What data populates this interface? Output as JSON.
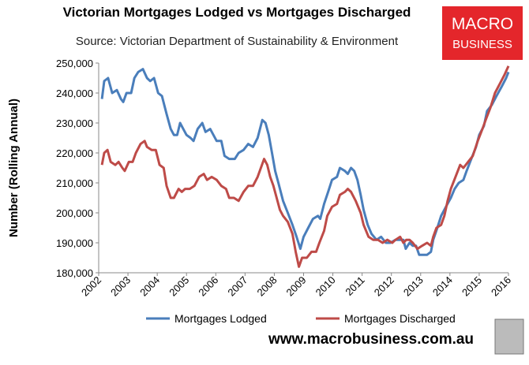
{
  "chart_data": {
    "type": "line",
    "title": "Victorian Mortgages Lodged vs Mortgages Discharged",
    "subtitle": "Source: Victorian Department of Sustainability & Environment",
    "y_label": "Number (Rolling Annual)",
    "logo": [
      "MACRO",
      "BUSINESS"
    ],
    "website": "www.macrobusiness.com.au",
    "xlim": [
      2002,
      2016
    ],
    "xticks": [
      2002,
      2003,
      2004,
      2005,
      2006,
      2007,
      2008,
      2009,
      2010,
      2011,
      2012,
      2013,
      2014,
      2015,
      2016
    ],
    "ylim": [
      180000,
      250000
    ],
    "yticks": [
      {
        "value": 180000,
        "label": "180,000"
      },
      {
        "value": 190000,
        "label": "190,000"
      },
      {
        "value": 200000,
        "label": "200,000"
      },
      {
        "value": 210000,
        "label": "210,000"
      },
      {
        "value": 220000,
        "label": "220,000"
      },
      {
        "value": 230000,
        "label": "230,000"
      },
      {
        "value": 240000,
        "label": "240,000"
      },
      {
        "value": 250000,
        "label": "250,000"
      }
    ],
    "grid": false,
    "legend": "bottom",
    "series": [
      {
        "name": "Mortgages Lodged",
        "color": "#4a7ebb",
        "x": [
          2002.11,
          2002.19,
          2002.32,
          2002.46,
          2002.62,
          2002.76,
          2002.84,
          2002.95,
          2003.11,
          2003.22,
          2003.35,
          2003.51,
          2003.65,
          2003.76,
          2003.89,
          2004.03,
          2004.16,
          2004.32,
          2004.46,
          2004.57,
          2004.68,
          2004.78,
          2004.89,
          2005.0,
          2005.14,
          2005.24,
          2005.38,
          2005.54,
          2005.65,
          2005.81,
          2005.92,
          2006.03,
          2006.19,
          2006.3,
          2006.46,
          2006.65,
          2006.78,
          2006.95,
          2007.11,
          2007.27,
          2007.43,
          2007.59,
          2007.7,
          2007.81,
          2007.92,
          2008.03,
          2008.14,
          2008.3,
          2008.46,
          2008.62,
          2008.76,
          2008.89,
          2009.0,
          2009.16,
          2009.32,
          2009.49,
          2009.57,
          2009.7,
          2009.84,
          2009.97,
          2010.14,
          2010.24,
          2010.41,
          2010.51,
          2010.62,
          2010.73,
          2010.84,
          2010.95,
          2011.05,
          2011.19,
          2011.32,
          2011.49,
          2011.65,
          2011.81,
          2011.97,
          2012.14,
          2012.27,
          2012.41,
          2012.49,
          2012.62,
          2012.73,
          2012.84,
          2012.95,
          2013.05,
          2013.22,
          2013.35,
          2013.43,
          2013.57,
          2013.7,
          2013.86,
          2014.03,
          2014.16,
          2014.3,
          2014.46,
          2014.57,
          2014.73,
          2014.89,
          2015.0,
          2015.16,
          2015.27,
          2015.43,
          2015.59,
          2015.76,
          2015.92,
          2016.0
        ],
        "values": [
          238000,
          244000,
          245000,
          240000,
          241000,
          238000,
          237000,
          240000,
          240000,
          245000,
          247000,
          248000,
          245000,
          244000,
          245000,
          240000,
          239000,
          233000,
          228000,
          226000,
          226000,
          230000,
          228000,
          226000,
          225000,
          224000,
          228000,
          230000,
          227000,
          228000,
          226000,
          224000,
          224000,
          219000,
          218000,
          218000,
          220000,
          221000,
          223000,
          222000,
          225000,
          231000,
          230000,
          226000,
          220000,
          214000,
          210000,
          204000,
          200000,
          196000,
          192000,
          188000,
          192000,
          195000,
          198000,
          199000,
          198000,
          203000,
          207000,
          211000,
          212000,
          215000,
          214000,
          213000,
          215000,
          214000,
          211000,
          206000,
          201000,
          196000,
          193000,
          191000,
          192000,
          190000,
          190000,
          191000,
          191000,
          191000,
          188000,
          190000,
          189000,
          189000,
          186000,
          186000,
          186000,
          187000,
          191000,
          195000,
          199000,
          202000,
          205000,
          208000,
          210000,
          211000,
          214000,
          218000,
          222000,
          226000,
          229000,
          234000,
          236000,
          239000,
          242000,
          245000,
          247000
        ]
      },
      {
        "name": "Mortgages Discharged",
        "color": "#be4b48",
        "x": [
          2002.11,
          2002.19,
          2002.3,
          2002.41,
          2002.57,
          2002.68,
          2002.81,
          2002.89,
          2003.03,
          2003.16,
          2003.27,
          2003.43,
          2003.57,
          2003.65,
          2003.81,
          2003.95,
          2004.08,
          2004.22,
          2004.32,
          2004.46,
          2004.57,
          2004.73,
          2004.84,
          2004.95,
          2005.11,
          2005.27,
          2005.43,
          2005.59,
          2005.7,
          2005.86,
          2006.03,
          2006.19,
          2006.35,
          2006.46,
          2006.62,
          2006.78,
          2006.95,
          2007.11,
          2007.27,
          2007.43,
          2007.65,
          2007.76,
          2007.86,
          2007.97,
          2008.08,
          2008.19,
          2008.3,
          2008.46,
          2008.62,
          2008.73,
          2008.84,
          2008.95,
          2009.11,
          2009.27,
          2009.43,
          2009.54,
          2009.7,
          2009.81,
          2009.97,
          2010.14,
          2010.24,
          2010.41,
          2010.51,
          2010.62,
          2010.78,
          2010.95,
          2011.05,
          2011.22,
          2011.38,
          2011.54,
          2011.7,
          2011.86,
          2012.03,
          2012.14,
          2012.3,
          2012.41,
          2012.51,
          2012.62,
          2012.73,
          2012.89,
          2013.05,
          2013.22,
          2013.35,
          2013.43,
          2013.54,
          2013.7,
          2013.81,
          2013.92,
          2014.03,
          2014.19,
          2014.35,
          2014.46,
          2014.62,
          2014.78,
          2014.95,
          2015.11,
          2015.22,
          2015.38,
          2015.54,
          2015.7,
          2015.86,
          2016.0
        ],
        "values": [
          216000,
          220000,
          221000,
          217000,
          216000,
          217000,
          215000,
          214000,
          217000,
          217000,
          220000,
          223000,
          224000,
          222000,
          221000,
          221000,
          216000,
          215000,
          209000,
          205000,
          205000,
          208000,
          207000,
          208000,
          208000,
          209000,
          212000,
          213000,
          211000,
          212000,
          211000,
          209000,
          208000,
          205000,
          205000,
          204000,
          207000,
          209000,
          209000,
          212000,
          218000,
          216000,
          212000,
          209000,
          205000,
          201000,
          199000,
          197000,
          193000,
          187000,
          182000,
          185000,
          185000,
          187000,
          187000,
          190000,
          194000,
          199000,
          202000,
          203000,
          206000,
          207000,
          208000,
          207000,
          204000,
          200000,
          196000,
          192000,
          191000,
          191000,
          190000,
          191000,
          190000,
          191000,
          192000,
          190000,
          191000,
          191000,
          190000,
          188000,
          189000,
          190000,
          189000,
          192000,
          195000,
          196000,
          199000,
          204000,
          208000,
          212000,
          216000,
          215000,
          217000,
          219000,
          224000,
          228000,
          231000,
          235000,
          240000,
          243000,
          246000,
          249000
        ]
      }
    ]
  }
}
